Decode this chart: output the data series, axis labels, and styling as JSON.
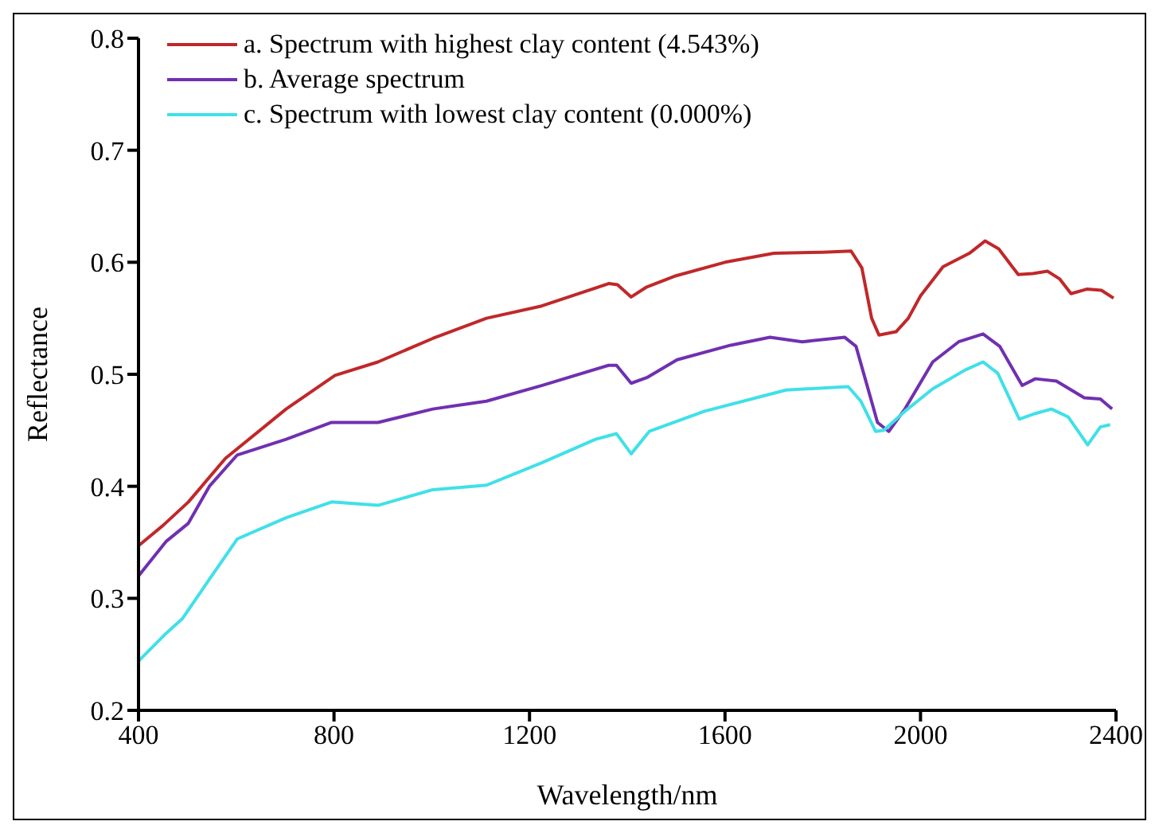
{
  "chart_data": {
    "type": "line",
    "xlabel": "Wavelength/nm",
    "ylabel": "Reflectance",
    "xlim": [
      400,
      2400
    ],
    "xticks": [
      400,
      800,
      1200,
      1600,
      2000,
      2400
    ],
    "ylim": [
      0.2,
      0.8
    ],
    "yticks": [
      0.2,
      0.3,
      0.4,
      0.5,
      0.6,
      0.7,
      0.8
    ],
    "grid": false,
    "legend": "top left",
    "marker": "none",
    "line_style": "solid",
    "series": [
      {
        "name": "a. Spectrum with highest clay content (4.543%)",
        "color": "#c0282a",
        "x": [
          400,
          450,
          502,
          578,
          702,
          802,
          890,
          1002,
          1112,
          1225,
          1362,
          1380,
          1408,
          1440,
          1500,
          1600,
          1700,
          1800,
          1858,
          1880,
          1900,
          1915,
          1950,
          1975,
          2000,
          2046,
          2100,
          2132,
          2160,
          2200,
          2230,
          2260,
          2285,
          2308,
          2340,
          2370,
          2395
        ],
        "values": [
          0.347,
          0.365,
          0.386,
          0.425,
          0.469,
          0.499,
          0.511,
          0.532,
          0.55,
          0.561,
          0.581,
          0.58,
          0.569,
          0.578,
          0.588,
          0.6,
          0.608,
          0.609,
          0.61,
          0.595,
          0.55,
          0.535,
          0.538,
          0.55,
          0.57,
          0.596,
          0.608,
          0.619,
          0.612,
          0.589,
          0.59,
          0.592,
          0.585,
          0.572,
          0.576,
          0.575,
          0.568
        ]
      },
      {
        "name": "b. Average spectrum",
        "color": "#7030b0",
        "x": [
          400,
          457,
          502,
          545,
          602,
          702,
          795,
          890,
          1002,
          1112,
          1225,
          1362,
          1378,
          1408,
          1440,
          1502,
          1612,
          1692,
          1758,
          1845,
          1868,
          1892,
          1912,
          1935,
          1968,
          2025,
          2078,
          2128,
          2162,
          2208,
          2235,
          2278,
          2335,
          2368,
          2392
        ],
        "values": [
          0.32,
          0.351,
          0.367,
          0.4,
          0.428,
          0.442,
          0.457,
          0.457,
          0.469,
          0.476,
          0.49,
          0.508,
          0.508,
          0.492,
          0.497,
          0.513,
          0.526,
          0.533,
          0.529,
          0.533,
          0.525,
          0.488,
          0.457,
          0.449,
          0.469,
          0.511,
          0.529,
          0.536,
          0.525,
          0.49,
          0.496,
          0.494,
          0.479,
          0.478,
          0.469
        ]
      },
      {
        "name": "c. Spectrum with lowest clay content (0.000%)",
        "color": "#40e0e8",
        "x": [
          400,
          457,
          490,
          545,
          602,
          702,
          795,
          890,
          1002,
          1112,
          1225,
          1335,
          1378,
          1408,
          1445,
          1558,
          1725,
          1852,
          1878,
          1908,
          1925,
          1968,
          2025,
          2092,
          2128,
          2158,
          2202,
          2235,
          2268,
          2302,
          2342,
          2368,
          2388
        ],
        "values": [
          0.244,
          0.269,
          0.282,
          0.317,
          0.353,
          0.372,
          0.386,
          0.383,
          0.397,
          0.401,
          0.421,
          0.442,
          0.447,
          0.429,
          0.449,
          0.467,
          0.486,
          0.489,
          0.476,
          0.449,
          0.45,
          0.467,
          0.487,
          0.504,
          0.511,
          0.501,
          0.46,
          0.465,
          0.469,
          0.462,
          0.437,
          0.453,
          0.455
        ]
      }
    ]
  }
}
